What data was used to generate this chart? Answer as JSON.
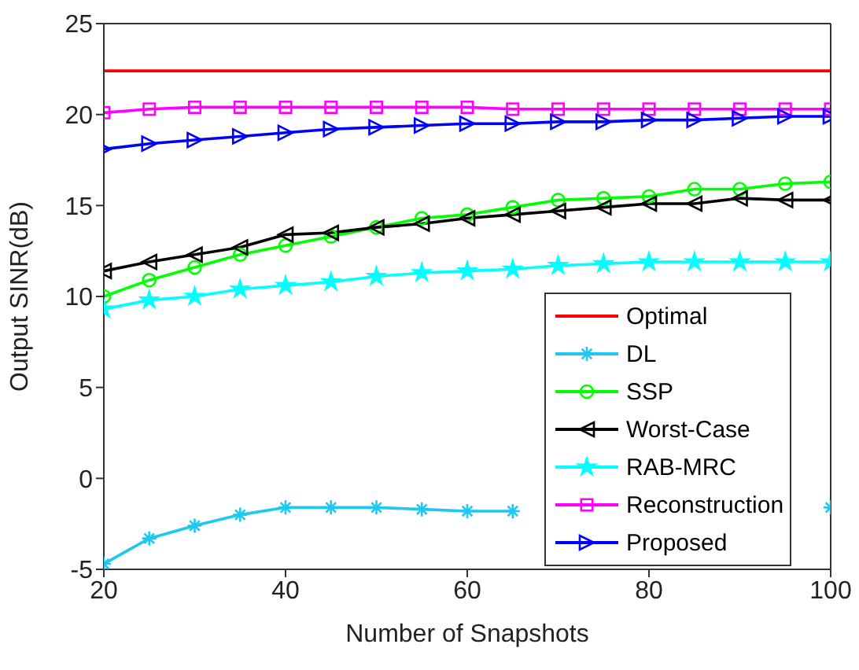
{
  "chart_data": {
    "type": "line",
    "xlabel": "Number of Snapshots",
    "ylabel": "Output SINR(dB)",
    "x": [
      20,
      25,
      30,
      35,
      40,
      45,
      50,
      55,
      60,
      65,
      70,
      75,
      80,
      85,
      90,
      95,
      100
    ],
    "xlim": [
      20,
      100
    ],
    "xticks": [
      20,
      40,
      60,
      80,
      100
    ],
    "ylim": [
      -5,
      25
    ],
    "yticks": [
      -5,
      0,
      5,
      10,
      15,
      20,
      25
    ],
    "grid": false,
    "legend": "bottom right",
    "line_style": "solid",
    "series": [
      {
        "name": "Optimal",
        "color": "#ff0000",
        "marker": "none",
        "values": [
          22.4,
          22.4,
          22.4,
          22.4,
          22.4,
          22.4,
          22.4,
          22.4,
          22.4,
          22.4,
          22.4,
          22.4,
          22.4,
          22.4,
          22.4,
          22.4,
          22.4
        ]
      },
      {
        "name": "DL",
        "color": "#1ec8f0",
        "marker": "cross",
        "values": [
          -4.7,
          -3.3,
          -2.6,
          -2.0,
          -1.6,
          -1.6,
          -1.6,
          -1.7,
          -1.8,
          -1.8,
          null,
          null,
          null,
          null,
          null,
          null,
          -1.6
        ]
      },
      {
        "name": "SSP",
        "color": "#00ff00",
        "marker": "circle",
        "values": [
          10.0,
          10.9,
          11.6,
          12.3,
          12.8,
          13.3,
          13.8,
          14.3,
          14.5,
          14.9,
          15.3,
          15.4,
          15.5,
          15.9,
          15.9,
          16.2,
          16.3
        ]
      },
      {
        "name": "Worst-Case",
        "color": "#000000",
        "marker": "triangle",
        "values": [
          11.4,
          11.9,
          12.3,
          12.7,
          13.4,
          13.5,
          13.8,
          14.0,
          14.3,
          14.5,
          14.7,
          14.9,
          15.1,
          15.1,
          15.4,
          15.3,
          15.3
        ]
      },
      {
        "name": "RAB-MRC",
        "color": "#00ffff",
        "marker": "star",
        "values": [
          9.3,
          9.8,
          10.0,
          10.4,
          10.6,
          10.8,
          11.1,
          11.3,
          11.4,
          11.5,
          11.7,
          11.8,
          11.9,
          11.9,
          11.9,
          11.9,
          11.9
        ]
      },
      {
        "name": "Reconstruction",
        "color": "#ff00ff",
        "marker": "square",
        "values": [
          20.1,
          20.3,
          20.4,
          20.4,
          20.4,
          20.4,
          20.4,
          20.4,
          20.4,
          20.3,
          20.3,
          20.3,
          20.3,
          20.3,
          20.3,
          20.3,
          20.3
        ]
      },
      {
        "name": "Proposed",
        "color": "#0000ff",
        "marker": "triangle",
        "values": [
          18.1,
          18.4,
          18.6,
          18.8,
          19.0,
          19.2,
          19.3,
          19.4,
          19.5,
          19.5,
          19.6,
          19.6,
          19.7,
          19.7,
          19.8,
          19.9,
          19.9
        ]
      }
    ]
  }
}
